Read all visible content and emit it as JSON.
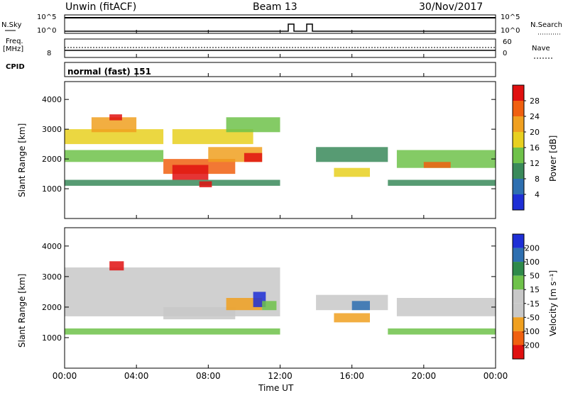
{
  "header": {
    "station": "Unwin (fitACF)",
    "beam": "Beam 13",
    "date": "30/Nov/2017"
  },
  "strip_nsky": {
    "left_label": "N.Sky",
    "left_ticks": [
      "10^5",
      "10^0"
    ],
    "right_label": "N.Search",
    "right_ticks": [
      "10^5",
      "10^0"
    ]
  },
  "strip_freq": {
    "left_label": "Freq.",
    "left_unit": "[MHz]",
    "left_ticks": [
      "8"
    ],
    "right_label": "Nave",
    "right_ticks": [
      "60",
      "0"
    ]
  },
  "strip_cpid": {
    "label": "CPID",
    "mode": "normal (fast) 151"
  },
  "colors": {
    "power": [
      "#1e2fd6",
      "#2e6fb0",
      "#3a8a5a",
      "#6fc24a",
      "#e8d020",
      "#f0a020",
      "#f06010",
      "#e01010"
    ],
    "velocity": [
      "#e01010",
      "#f06010",
      "#f0a020",
      "#c8c8c8",
      "#c8c8c8",
      "#6fc24a",
      "#2f8a4a",
      "#2e6fb0",
      "#1e2fd6"
    ]
  },
  "chart_data": [
    {
      "type": "heatmap",
      "title": "",
      "xlabel": "Time UT",
      "ylabel": "Slant Range [km]",
      "x_ticks": [
        "00:00",
        "04:00",
        "08:00",
        "12:00",
        "16:00",
        "20:00",
        "00:00"
      ],
      "y_ticks": [
        1000,
        2000,
        3000,
        4000
      ],
      "ylim": [
        0,
        4600
      ],
      "xlim_hours": [
        0,
        24
      ],
      "colorbar": {
        "label": "Power [dB]",
        "ticks": [
          4,
          8,
          12,
          16,
          20,
          24,
          28
        ],
        "range": [
          0,
          32
        ]
      },
      "regions": [
        {
          "t": [
            0.0,
            5.5
          ],
          "r": [
            2500,
            3000
          ],
          "level": 4
        },
        {
          "t": [
            0.0,
            5.5
          ],
          "r": [
            1900,
            2300
          ],
          "level": 3
        },
        {
          "t": [
            0.0,
            12.0
          ],
          "r": [
            1100,
            1300
          ],
          "level": 2
        },
        {
          "t": [
            1.5,
            4.0
          ],
          "r": [
            2900,
            3400
          ],
          "level": 5
        },
        {
          "t": [
            2.5,
            3.2
          ],
          "r": [
            3300,
            3500
          ],
          "level": 7
        },
        {
          "t": [
            5.5,
            9.5
          ],
          "r": [
            1500,
            2000
          ],
          "level": 6
        },
        {
          "t": [
            6.0,
            8.0
          ],
          "r": [
            1300,
            1800
          ],
          "level": 7
        },
        {
          "t": [
            7.5,
            8.2
          ],
          "r": [
            1050,
            1250
          ],
          "level": 7
        },
        {
          "t": [
            6.0,
            10.5
          ],
          "r": [
            2500,
            3000
          ],
          "level": 4
        },
        {
          "t": [
            8.0,
            11.0
          ],
          "r": [
            1900,
            2400
          ],
          "level": 5
        },
        {
          "t": [
            10.0,
            11.0
          ],
          "r": [
            1900,
            2200
          ],
          "level": 7
        },
        {
          "t": [
            9.0,
            12.0
          ],
          "r": [
            2900,
            3400
          ],
          "level": 3
        },
        {
          "t": [
            14.0,
            18.0
          ],
          "r": [
            1900,
            2400
          ],
          "level": 2
        },
        {
          "t": [
            15.0,
            17.0
          ],
          "r": [
            1400,
            1700
          ],
          "level": 4
        },
        {
          "t": [
            18.5,
            24.0
          ],
          "r": [
            1700,
            2300
          ],
          "level": 3
        },
        {
          "t": [
            20.0,
            21.5
          ],
          "r": [
            1700,
            1900
          ],
          "level": 6
        },
        {
          "t": [
            18.0,
            24.0
          ],
          "r": [
            1100,
            1300
          ],
          "level": 2
        }
      ]
    },
    {
      "type": "heatmap",
      "title": "",
      "xlabel": "Time UT",
      "ylabel": "Slant Range [km]",
      "x_ticks": [
        "00:00",
        "04:00",
        "08:00",
        "12:00",
        "16:00",
        "20:00",
        "00:00"
      ],
      "y_ticks": [
        1000,
        2000,
        3000,
        4000
      ],
      "ylim": [
        0,
        4600
      ],
      "xlim_hours": [
        0,
        24
      ],
      "colorbar": {
        "label": "Velocity [m s⁻¹]",
        "ticks": [
          200,
          100,
          50,
          15,
          -15,
          -50,
          -100,
          -200
        ],
        "range": [
          -250,
          250
        ]
      },
      "regions": [
        {
          "t": [
            0.0,
            12.0
          ],
          "r": [
            1700,
            3300
          ],
          "level": 4
        },
        {
          "t": [
            2.5,
            3.3
          ],
          "r": [
            3200,
            3500
          ],
          "level": 0
        },
        {
          "t": [
            5.5,
            9.5
          ],
          "r": [
            1600,
            2000
          ],
          "level": 4
        },
        {
          "t": [
            9.0,
            11.0
          ],
          "r": [
            1900,
            2300
          ],
          "level": 2
        },
        {
          "t": [
            10.5,
            11.2
          ],
          "r": [
            2000,
            2500
          ],
          "level": 8
        },
        {
          "t": [
            11.0,
            11.8
          ],
          "r": [
            1900,
            2200
          ],
          "level": 5
        },
        {
          "t": [
            0.0,
            12.0
          ],
          "r": [
            1100,
            1300
          ],
          "level": 5
        },
        {
          "t": [
            14.0,
            18.0
          ],
          "r": [
            1900,
            2400
          ],
          "level": 4
        },
        {
          "t": [
            15.0,
            17.0
          ],
          "r": [
            1500,
            1800
          ],
          "level": 2
        },
        {
          "t": [
            16.0,
            17.0
          ],
          "r": [
            1900,
            2200
          ],
          "level": 7
        },
        {
          "t": [
            18.5,
            24.0
          ],
          "r": [
            1700,
            2300
          ],
          "level": 4
        },
        {
          "t": [
            18.0,
            24.0
          ],
          "r": [
            1100,
            1300
          ],
          "level": 5
        }
      ]
    }
  ]
}
